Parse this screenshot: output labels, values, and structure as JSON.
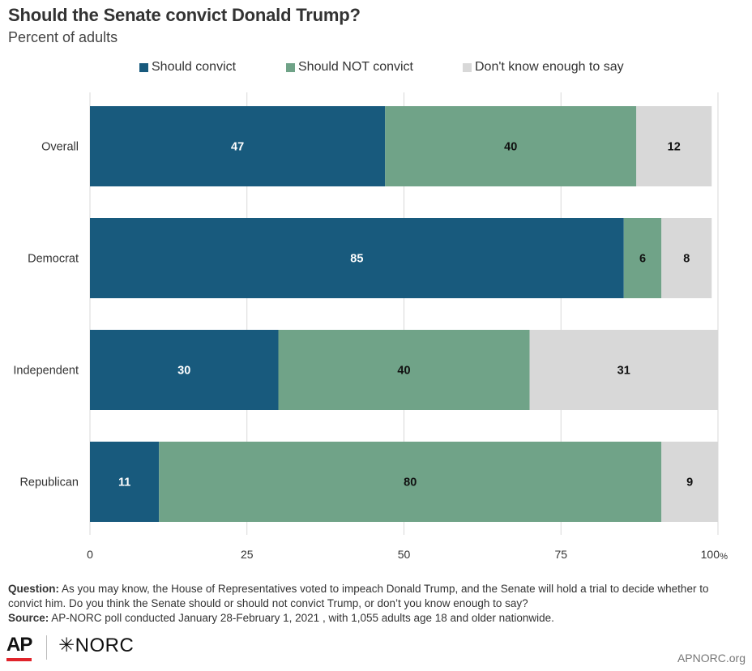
{
  "header": {
    "title": "Should the Senate convict Donald Trump?",
    "subtitle": "Percent of adults"
  },
  "colors": {
    "convict": "#185a7d",
    "not_convict": "#70a388",
    "dont_know": "#d8d8d8",
    "gridline": "#d9d9d9"
  },
  "legend": [
    {
      "label": "Should convict",
      "color": "#185a7d"
    },
    {
      "label": "Should NOT convict",
      "color": "#70a388"
    },
    {
      "label": "Don't know enough to say",
      "color": "#d8d8d8"
    }
  ],
  "chart_data": {
    "type": "bar",
    "orientation": "horizontal",
    "stacked": true,
    "categories": [
      "Overall",
      "Democrat",
      "Independent",
      "Republican"
    ],
    "series": [
      {
        "name": "Should convict",
        "values": [
          47,
          85,
          30,
          11
        ]
      },
      {
        "name": "Should NOT convict",
        "values": [
          40,
          6,
          40,
          80
        ]
      },
      {
        "name": "Don't know enough to say",
        "values": [
          12,
          8,
          31,
          9
        ]
      }
    ],
    "xlim": [
      0,
      100
    ],
    "xticks": [
      "0",
      "25",
      "50",
      "75",
      "100"
    ],
    "xunit": "%",
    "grid": true,
    "legend_position": "top"
  },
  "footnote": {
    "question_label": "Question:",
    "question_text": " As you may know, the House of Representatives voted to impeach Donald Trump, and the Senate will hold a trial to decide whether to convict him. Do you think the Senate should or should not convict Trump, or don’t you know enough to say?",
    "source_label": "Source:",
    "source_text": " AP-NORC poll conducted January 28-February 1, 2021 , with 1,055 adults age 18 and older nationwide."
  },
  "branding": {
    "ap_logo": "AP",
    "norc_logo": "✳NORC",
    "site": "APNORC.org"
  }
}
